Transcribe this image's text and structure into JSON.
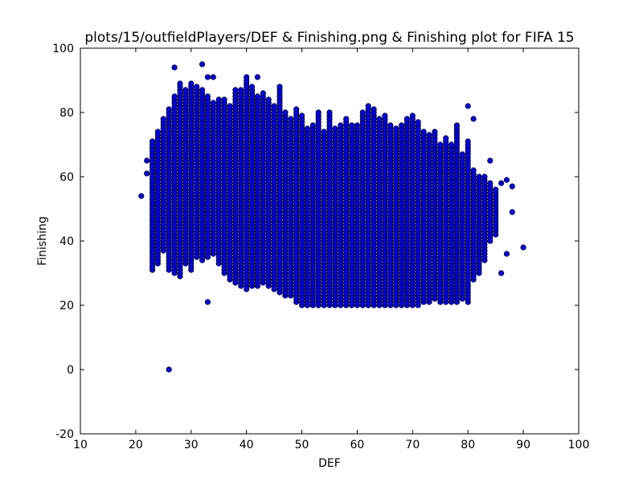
{
  "chart_data": {
    "type": "scatter",
    "title": "plots/15/outfieldPlayers/DEF & Finishing.png & Finishing plot for FIFA 15",
    "xlabel": "DEF",
    "ylabel": "Finishing",
    "xlim": [
      10,
      100
    ],
    "ylim": [
      -20,
      100
    ],
    "x_ticks": [
      "10",
      "20",
      "30",
      "40",
      "50",
      "60",
      "70",
      "80",
      "90",
      "100"
    ],
    "y_ticks": [
      "-20",
      "0",
      "20",
      "40",
      "60",
      "80",
      "100"
    ],
    "grid": false,
    "marker_color": "#0000ff",
    "marker_edge": "#000000",
    "outliers": [
      {
        "x": 21,
        "y": 54
      },
      {
        "x": 22,
        "y": 61
      },
      {
        "x": 22,
        "y": 65
      },
      {
        "x": 26,
        "y": 0
      },
      {
        "x": 27,
        "y": 94
      },
      {
        "x": 32,
        "y": 95
      },
      {
        "x": 33,
        "y": 21
      },
      {
        "x": 33,
        "y": 91
      },
      {
        "x": 34,
        "y": 91
      },
      {
        "x": 40,
        "y": 91
      },
      {
        "x": 42,
        "y": 91
      },
      {
        "x": 80,
        "y": 82
      },
      {
        "x": 81,
        "y": 78
      },
      {
        "x": 84,
        "y": 65
      },
      {
        "x": 86,
        "y": 58
      },
      {
        "x": 86,
        "y": 30
      },
      {
        "x": 87,
        "y": 36
      },
      {
        "x": 88,
        "y": 57
      },
      {
        "x": 88,
        "y": 49
      },
      {
        "x": 90,
        "y": 38
      },
      {
        "x": 85,
        "y": 42
      },
      {
        "x": 87,
        "y": 59
      }
    ],
    "columns": [
      {
        "x": 23,
        "ymin": 31,
        "ymax": 71
      },
      {
        "x": 24,
        "ymin": 33,
        "ymax": 74
      },
      {
        "x": 25,
        "ymin": 37,
        "ymax": 78
      },
      {
        "x": 26,
        "ymin": 31,
        "ymax": 81
      },
      {
        "x": 27,
        "ymin": 30,
        "ymax": 85
      },
      {
        "x": 28,
        "ymin": 29,
        "ymax": 89
      },
      {
        "x": 29,
        "ymin": 33,
        "ymax": 87
      },
      {
        "x": 30,
        "ymin": 31,
        "ymax": 89
      },
      {
        "x": 31,
        "ymin": 35,
        "ymax": 88
      },
      {
        "x": 32,
        "ymin": 34,
        "ymax": 87
      },
      {
        "x": 33,
        "ymin": 35,
        "ymax": 85
      },
      {
        "x": 34,
        "ymin": 36,
        "ymax": 83
      },
      {
        "x": 35,
        "ymin": 33,
        "ymax": 84
      },
      {
        "x": 36,
        "ymin": 30,
        "ymax": 84
      },
      {
        "x": 37,
        "ymin": 28,
        "ymax": 82
      },
      {
        "x": 38,
        "ymin": 27,
        "ymax": 87
      },
      {
        "x": 39,
        "ymin": 26,
        "ymax": 87
      },
      {
        "x": 40,
        "ymin": 25,
        "ymax": 90
      },
      {
        "x": 41,
        "ymin": 26,
        "ymax": 88
      },
      {
        "x": 42,
        "ymin": 26,
        "ymax": 85
      },
      {
        "x": 43,
        "ymin": 27,
        "ymax": 86
      },
      {
        "x": 44,
        "ymin": 26,
        "ymax": 84
      },
      {
        "x": 45,
        "ymin": 25,
        "ymax": 82
      },
      {
        "x": 46,
        "ymin": 24,
        "ymax": 88
      },
      {
        "x": 47,
        "ymin": 23,
        "ymax": 80
      },
      {
        "x": 48,
        "ymin": 23,
        "ymax": 78
      },
      {
        "x": 49,
        "ymin": 21,
        "ymax": 81
      },
      {
        "x": 50,
        "ymin": 20,
        "ymax": 79
      },
      {
        "x": 51,
        "ymin": 20,
        "ymax": 75
      },
      {
        "x": 52,
        "ymin": 20,
        "ymax": 76
      },
      {
        "x": 53,
        "ymin": 20,
        "ymax": 80
      },
      {
        "x": 54,
        "ymin": 20,
        "ymax": 74
      },
      {
        "x": 55,
        "ymin": 20,
        "ymax": 80
      },
      {
        "x": 56,
        "ymin": 20,
        "ymax": 75
      },
      {
        "x": 57,
        "ymin": 20,
        "ymax": 76
      },
      {
        "x": 58,
        "ymin": 20,
        "ymax": 78
      },
      {
        "x": 59,
        "ymin": 20,
        "ymax": 76
      },
      {
        "x": 60,
        "ymin": 20,
        "ymax": 76
      },
      {
        "x": 61,
        "ymin": 20,
        "ymax": 80
      },
      {
        "x": 62,
        "ymin": 20,
        "ymax": 82
      },
      {
        "x": 63,
        "ymin": 20,
        "ymax": 81
      },
      {
        "x": 64,
        "ymin": 20,
        "ymax": 78
      },
      {
        "x": 65,
        "ymin": 20,
        "ymax": 79
      },
      {
        "x": 66,
        "ymin": 20,
        "ymax": 76
      },
      {
        "x": 67,
        "ymin": 20,
        "ymax": 75
      },
      {
        "x": 68,
        "ymin": 20,
        "ymax": 76
      },
      {
        "x": 69,
        "ymin": 20,
        "ymax": 78
      },
      {
        "x": 70,
        "ymin": 20,
        "ymax": 79
      },
      {
        "x": 71,
        "ymin": 20,
        "ymax": 77
      },
      {
        "x": 72,
        "ymin": 21,
        "ymax": 74
      },
      {
        "x": 73,
        "ymin": 21,
        "ymax": 73
      },
      {
        "x": 74,
        "ymin": 22,
        "ymax": 74
      },
      {
        "x": 75,
        "ymin": 21,
        "ymax": 70
      },
      {
        "x": 76,
        "ymin": 21,
        "ymax": 72
      },
      {
        "x": 77,
        "ymin": 21,
        "ymax": 70
      },
      {
        "x": 78,
        "ymin": 21,
        "ymax": 76
      },
      {
        "x": 79,
        "ymin": 22,
        "ymax": 67
      },
      {
        "x": 80,
        "ymin": 21,
        "ymax": 71
      },
      {
        "x": 81,
        "ymin": 28,
        "ymax": 62
      },
      {
        "x": 82,
        "ymin": 30,
        "ymax": 60
      },
      {
        "x": 83,
        "ymin": 34,
        "ymax": 60
      },
      {
        "x": 84,
        "ymin": 40,
        "ymax": 58
      },
      {
        "x": 85,
        "ymin": 43,
        "ymax": 56
      }
    ]
  }
}
